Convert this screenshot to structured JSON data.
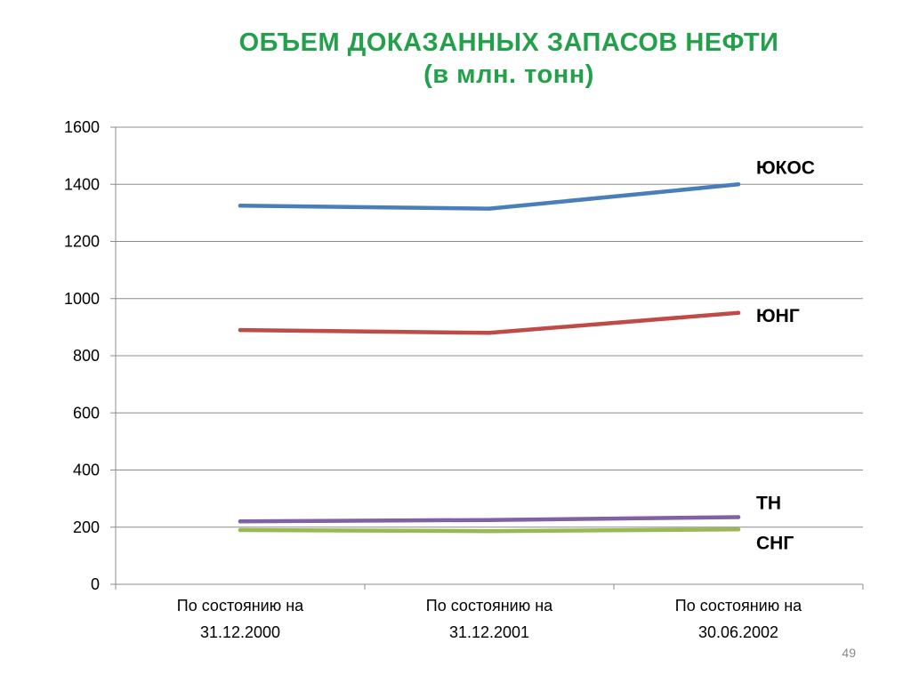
{
  "slide": {
    "title_line1": "ОБЪЕМ ДОКАЗАННЫХ ЗАПАСОВ НЕФТИ",
    "title_line2": "(в млн. тонн)",
    "page_number": "49"
  },
  "chart_data": {
    "type": "line",
    "title": "ОБЪЕМ ДОКАЗАННЫХ ЗАПАСОВ НЕФТИ (в млн. тонн)",
    "xlabel": "",
    "ylabel": "",
    "ylim": [
      0,
      1600
    ],
    "yticks": [
      0,
      200,
      400,
      600,
      800,
      1000,
      1200,
      1400,
      1600
    ],
    "grid": true,
    "categories": [
      [
        "По состоянию на",
        "31.12.2000"
      ],
      [
        "По состоянию на",
        "31.12.2001"
      ],
      [
        "По состоянию на",
        "30.06.2002"
      ]
    ],
    "series": [
      {
        "name": "ЮКОС",
        "color": "#4a7ebb",
        "values": [
          1325,
          1315,
          1400
        ]
      },
      {
        "name": "ЮНГ",
        "color": "#be4b48",
        "values": [
          890,
          880,
          950
        ]
      },
      {
        "name": "ТН",
        "color": "#7f62a1",
        "values": [
          220,
          225,
          235
        ]
      },
      {
        "name": "СНГ",
        "color": "#98b954",
        "values": [
          190,
          186,
          192
        ]
      }
    ]
  }
}
